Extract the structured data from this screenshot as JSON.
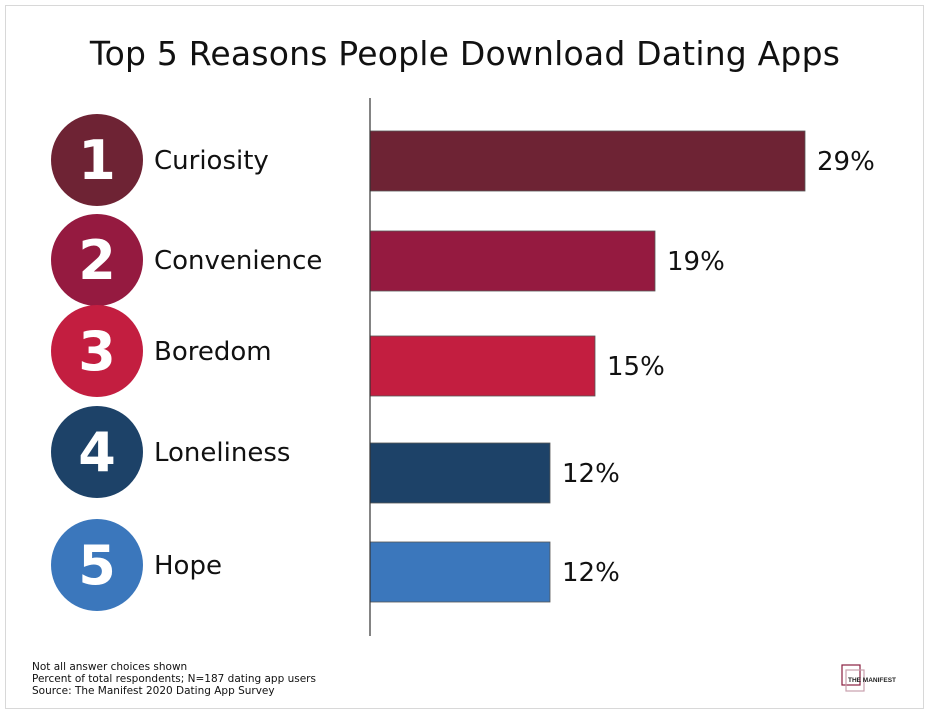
{
  "chart_data": {
    "type": "bar",
    "orientation": "horizontal",
    "title": "Top 5 Reasons People Download Dating Apps",
    "categories": [
      "Curiosity",
      "Convenience",
      "Boredom",
      "Loneliness",
      "Hope"
    ],
    "ranks": [
      "1",
      "2",
      "3",
      "4",
      "5"
    ],
    "values": [
      29,
      19,
      15,
      12,
      12
    ],
    "value_labels": [
      "29%",
      "19%",
      "15%",
      "12%",
      "12%"
    ],
    "colors": [
      "#6e2334",
      "#951a40",
      "#c31e40",
      "#1d4268",
      "#3b77bc"
    ],
    "xlim": [
      0,
      30
    ],
    "grid": false
  },
  "footer": {
    "notes": [
      "Not all answer choices shown",
      "Percent of total respondents; N=187 dating app users",
      "Source: The Manifest 2020 Dating App Survey"
    ]
  },
  "logo": {
    "text": "THE MANIFEST",
    "color": "#8a1f3f"
  }
}
